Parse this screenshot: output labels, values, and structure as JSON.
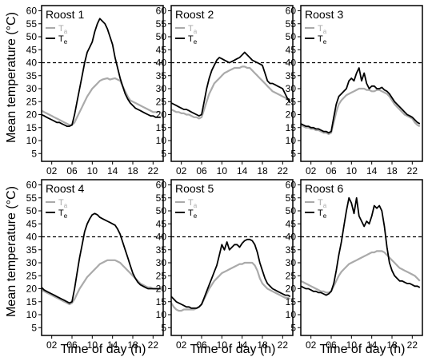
{
  "figure": {
    "y_axis_label": "Mean temperature (°C)",
    "x_axis_label": "Time of day (h)"
  },
  "legend": {
    "ta_base": "T",
    "ta_sub": "a",
    "te_base": "T",
    "te_sub": "e"
  },
  "colors": {
    "ta": "#aaaaaa",
    "te": "#000000",
    "threshold": "#000000"
  },
  "chart_data": [
    {
      "type": "line",
      "title": "Roost 1",
      "xlabel": "",
      "ylabel": "",
      "xlim": [
        0,
        24
      ],
      "ylim": [
        2,
        62
      ],
      "x_ticks": [
        "02",
        "06",
        "10",
        "14",
        "18",
        "22"
      ],
      "y_ticks": [
        "5",
        "10",
        "15",
        "20",
        "25",
        "30",
        "35",
        "40",
        "45",
        "50",
        "55",
        "60"
      ],
      "threshold": 40,
      "x": [
        0,
        0.5,
        1,
        1.5,
        2,
        2.5,
        3,
        3.5,
        4,
        4.5,
        5,
        5.5,
        6,
        6.5,
        7,
        7.5,
        8,
        8.5,
        9,
        9.5,
        10,
        10.5,
        11,
        11.5,
        12,
        12.5,
        13,
        13.5,
        14,
        14.5,
        15,
        15.5,
        16,
        16.5,
        17,
        17.5,
        18,
        18.5,
        19,
        19.5,
        20,
        20.5,
        21,
        21.5,
        22,
        22.5,
        23,
        23.5
      ],
      "series": [
        {
          "name": "Ta",
          "values": [
            21.5,
            21,
            20.5,
            20,
            19.5,
            19,
            18.5,
            18,
            17.5,
            17,
            16.5,
            16,
            16,
            17,
            19,
            21,
            23,
            25,
            27,
            28.5,
            30,
            31,
            32,
            33,
            33.5,
            33.8,
            34,
            33.5,
            33.8,
            34,
            33.5,
            33,
            31,
            29,
            27,
            25.5,
            25,
            24.5,
            24,
            23.5,
            23,
            22.5,
            22,
            21.5,
            21,
            21,
            21,
            21
          ]
        },
        {
          "name": "Te",
          "values": [
            20,
            19.5,
            19,
            18.5,
            18,
            17.5,
            17,
            17,
            16.5,
            16,
            15.5,
            15.5,
            16,
            20,
            25,
            30,
            35,
            40,
            44,
            46,
            48,
            52,
            55,
            57,
            56,
            55,
            53,
            50,
            47,
            42,
            38,
            34,
            31,
            28,
            26,
            24.5,
            23.5,
            22.5,
            22,
            21.5,
            21,
            20.5,
            20,
            19.5,
            19.5,
            19,
            19,
            19
          ]
        }
      ]
    },
    {
      "type": "line",
      "title": "Roost 2",
      "xlabel": "",
      "ylabel": "",
      "xlim": [
        0,
        24
      ],
      "ylim": [
        2,
        62
      ],
      "x_ticks": [
        "02",
        "06",
        "10",
        "14",
        "18",
        "22"
      ],
      "y_ticks": [
        "5",
        "10",
        "15",
        "20",
        "25",
        "30",
        "35",
        "40",
        "45",
        "50",
        "55",
        "60"
      ],
      "threshold": 40,
      "x": [
        0,
        0.5,
        1,
        1.5,
        2,
        2.5,
        3,
        3.5,
        4,
        4.5,
        5,
        5.5,
        6,
        6.5,
        7,
        7.5,
        8,
        8.5,
        9,
        9.5,
        10,
        10.5,
        11,
        11.5,
        12,
        12.5,
        13,
        13.5,
        14,
        14.5,
        15,
        15.5,
        16,
        16.5,
        17,
        17.5,
        18,
        18.5,
        19,
        19.5,
        20,
        20.5,
        21,
        21.5,
        22,
        22.5,
        23,
        23.5
      ],
      "series": [
        {
          "name": "Ta",
          "values": [
            22,
            21.5,
            21,
            21,
            20.5,
            20.5,
            20,
            20,
            19.5,
            19,
            19,
            18.5,
            19,
            22,
            25,
            28,
            30,
            32,
            33,
            34,
            35,
            36,
            36.5,
            37,
            37.5,
            38,
            38,
            38,
            38.5,
            38.5,
            38,
            38,
            37,
            36,
            35,
            34,
            33,
            32,
            31,
            30,
            29,
            28.5,
            28,
            27.5,
            27,
            26.5,
            26,
            25.5
          ]
        },
        {
          "name": "Te",
          "values": [
            24.5,
            24,
            23.5,
            23,
            22.5,
            22,
            22,
            21.5,
            21,
            20.5,
            20,
            19.5,
            20,
            25,
            30,
            34,
            37,
            39,
            41,
            42,
            41.5,
            41,
            40.5,
            40,
            40.5,
            41,
            41.5,
            42,
            43,
            44,
            43,
            42,
            41,
            40.5,
            40,
            39.5,
            39,
            36,
            33,
            32,
            32,
            31.5,
            31,
            30.5,
            30,
            28,
            26,
            24.5
          ]
        }
      ]
    },
    {
      "type": "line",
      "title": "Roost 3",
      "xlabel": "",
      "ylabel": "",
      "xlim": [
        0,
        24
      ],
      "ylim": [
        2,
        62
      ],
      "x_ticks": [
        "02",
        "06",
        "10",
        "14",
        "18",
        "22"
      ],
      "y_ticks": [
        "5",
        "10",
        "15",
        "20",
        "25",
        "30",
        "35",
        "40",
        "45",
        "50",
        "55",
        "60"
      ],
      "threshold": 40,
      "x": [
        0,
        0.5,
        1,
        1.5,
        2,
        2.5,
        3,
        3.5,
        4,
        4.5,
        5,
        5.5,
        6,
        6.5,
        7,
        7.5,
        8,
        8.5,
        9,
        9.5,
        10,
        10.5,
        11,
        11.5,
        12,
        12.5,
        13,
        13.5,
        14,
        14.5,
        15,
        15.5,
        16,
        16.5,
        17,
        17.5,
        18,
        18.5,
        19,
        19.5,
        20,
        20.5,
        21,
        21.5,
        22,
        22.5,
        23,
        23.5
      ],
      "series": [
        {
          "name": "Ta",
          "values": [
            16,
            15.5,
            15,
            15,
            14.5,
            14.5,
            14,
            14,
            13.5,
            13,
            13,
            12.5,
            13,
            17,
            21,
            24,
            25.5,
            26.5,
            27.5,
            28,
            28.5,
            29,
            29.5,
            30,
            30,
            30,
            29.5,
            29.5,
            29,
            29,
            29.5,
            29.5,
            29,
            28.5,
            28,
            27,
            25.5,
            24,
            23,
            22,
            21,
            20,
            19.5,
            19,
            18.5,
            17,
            16,
            15.5
          ]
        },
        {
          "name": "Te",
          "values": [
            16.5,
            16,
            15.5,
            15.5,
            15,
            15,
            14.5,
            14.5,
            14,
            13.5,
            13.5,
            13,
            13.5,
            19,
            24,
            27,
            28,
            29,
            30,
            33,
            34,
            33,
            36,
            38,
            33,
            36,
            32,
            30,
            31,
            31,
            30,
            30,
            30.5,
            29.5,
            29,
            28,
            26.5,
            25,
            24,
            23,
            22,
            21,
            20,
            19.5,
            19,
            18,
            17,
            16.5
          ]
        }
      ]
    },
    {
      "type": "line",
      "title": "Roost 4",
      "xlabel": "",
      "ylabel": "",
      "xlim": [
        0,
        24
      ],
      "ylim": [
        2,
        62
      ],
      "x_ticks": [
        "02",
        "06",
        "10",
        "14",
        "18",
        "22"
      ],
      "y_ticks": [
        "5",
        "10",
        "15",
        "20",
        "25",
        "30",
        "35",
        "40",
        "45",
        "50",
        "55",
        "60"
      ],
      "threshold": 40,
      "x": [
        0,
        0.5,
        1,
        1.5,
        2,
        2.5,
        3,
        3.5,
        4,
        4.5,
        5,
        5.5,
        6,
        6.5,
        7,
        7.5,
        8,
        8.5,
        9,
        9.5,
        10,
        10.5,
        11,
        11.5,
        12,
        12.5,
        13,
        13.5,
        14,
        14.5,
        15,
        15.5,
        16,
        16.5,
        17,
        17.5,
        18,
        18.5,
        19,
        19.5,
        20,
        20.5,
        21,
        21.5,
        22,
        22.5,
        23,
        23.5
      ],
      "series": [
        {
          "name": "Ta",
          "values": [
            19.5,
            19,
            18.5,
            18,
            17.5,
            17,
            16.5,
            16,
            15.5,
            15,
            14.5,
            14,
            14.5,
            16,
            18,
            20,
            21.5,
            23,
            24.5,
            25.5,
            26.5,
            27.5,
            28.5,
            29.5,
            30,
            30.5,
            31,
            31,
            31,
            31,
            30.5,
            30,
            29,
            28,
            27,
            26,
            25,
            24,
            23,
            22,
            21.5,
            21,
            20.5,
            20.5,
            20,
            20,
            20,
            20
          ]
        },
        {
          "name": "Te",
          "values": [
            20.5,
            19.5,
            19,
            18.5,
            18,
            17.5,
            17,
            16.5,
            16,
            15.5,
            15,
            14.5,
            15,
            20,
            26,
            32,
            37,
            42,
            45,
            47,
            48.5,
            49,
            48.5,
            47.5,
            47,
            46.5,
            46,
            45.5,
            45,
            44.5,
            43,
            41,
            38,
            35,
            32,
            29,
            26,
            24,
            22.5,
            21.5,
            21,
            20.5,
            20,
            20,
            20,
            20,
            20,
            20
          ]
        }
      ]
    },
    {
      "type": "line",
      "title": "Roost 5",
      "xlabel": "",
      "ylabel": "",
      "xlim": [
        0,
        24
      ],
      "ylim": [
        2,
        62
      ],
      "x_ticks": [
        "02",
        "06",
        "10",
        "14",
        "18",
        "22"
      ],
      "y_ticks": [
        "5",
        "10",
        "15",
        "20",
        "25",
        "30",
        "35",
        "40",
        "45",
        "50",
        "55",
        "60"
      ],
      "threshold": 40,
      "x": [
        0,
        0.5,
        1,
        1.5,
        2,
        2.5,
        3,
        3.5,
        4,
        4.5,
        5,
        5.5,
        6,
        6.5,
        7,
        7.5,
        8,
        8.5,
        9,
        9.5,
        10,
        10.5,
        11,
        11.5,
        12,
        12.5,
        13,
        13.5,
        14,
        14.5,
        15,
        15.5,
        16,
        16.5,
        17,
        17.5,
        18,
        18.5,
        19,
        19.5,
        20,
        20.5,
        21,
        21.5,
        22,
        22.5,
        23,
        23.5
      ],
      "series": [
        {
          "name": "Ta",
          "values": [
            14.5,
            13,
            12,
            11.5,
            11.5,
            12,
            12,
            12,
            12,
            12,
            12.5,
            13,
            14,
            16,
            18,
            20,
            21.5,
            23,
            24,
            25,
            26,
            26.5,
            27,
            27.5,
            28,
            28.5,
            29,
            29.5,
            29.5,
            30,
            30,
            30,
            30,
            29,
            27,
            24,
            22,
            21,
            20,
            19.5,
            19,
            18.5,
            18,
            17.5,
            17,
            16.5,
            16.5,
            16
          ]
        },
        {
          "name": "Te",
          "values": [
            17,
            16,
            15,
            14.5,
            14,
            13.5,
            13,
            13,
            12.5,
            12.5,
            12.5,
            13,
            14,
            16.5,
            19,
            21.5,
            24,
            26.5,
            29,
            33,
            37,
            35,
            38,
            35,
            36,
            37,
            37,
            36,
            37.5,
            38.5,
            39,
            39,
            38.5,
            37,
            34,
            30,
            27,
            24,
            22,
            21,
            20,
            19.5,
            19,
            18.5,
            18,
            17.5,
            17.5,
            17
          ]
        }
      ]
    },
    {
      "type": "line",
      "title": "Roost 6",
      "xlabel": "",
      "ylabel": "",
      "xlim": [
        0,
        24
      ],
      "ylim": [
        2,
        62
      ],
      "x_ticks": [
        "02",
        "06",
        "10",
        "14",
        "18",
        "22"
      ],
      "y_ticks": [
        "5",
        "10",
        "15",
        "20",
        "25",
        "30",
        "35",
        "40",
        "45",
        "50",
        "55",
        "60"
      ],
      "threshold": 40,
      "x": [
        0,
        0.5,
        1,
        1.5,
        2,
        2.5,
        3,
        3.5,
        4,
        4.5,
        5,
        5.5,
        6,
        6.5,
        7,
        7.5,
        8,
        8.5,
        9,
        9.5,
        10,
        10.5,
        11,
        11.5,
        12,
        12.5,
        13,
        13.5,
        14,
        14.5,
        15,
        15.5,
        16,
        16.5,
        17,
        17.5,
        18,
        18.5,
        19,
        19.5,
        20,
        20.5,
        21,
        21.5,
        22,
        22.5,
        23,
        23.5
      ],
      "series": [
        {
          "name": "Ta",
          "values": [
            23,
            22.5,
            22,
            21.5,
            21,
            20.5,
            20,
            19.5,
            19,
            19,
            18.5,
            18.5,
            19,
            21,
            23,
            25,
            26.5,
            27.5,
            28.5,
            29.5,
            30,
            30.5,
            31,
            31.5,
            32,
            32.5,
            33,
            33.5,
            34,
            34,
            34.5,
            34.5,
            34.5,
            34,
            33,
            32,
            31,
            30,
            29,
            28,
            27.5,
            27,
            26.5,
            26,
            25.5,
            25,
            24,
            23
          ]
        },
        {
          "name": "Te",
          "values": [
            21,
            20.5,
            20,
            20,
            19.5,
            19,
            19,
            18.5,
            18.5,
            18,
            17.5,
            18,
            19,
            22,
            27,
            33,
            38,
            44,
            50,
            55,
            53,
            49,
            55,
            48,
            46,
            44,
            46,
            45,
            48,
            52,
            51,
            52,
            50,
            44,
            36,
            30,
            27,
            25,
            24,
            23,
            23,
            22.5,
            22,
            22,
            21.5,
            21,
            21,
            20.5
          ]
        }
      ]
    }
  ]
}
